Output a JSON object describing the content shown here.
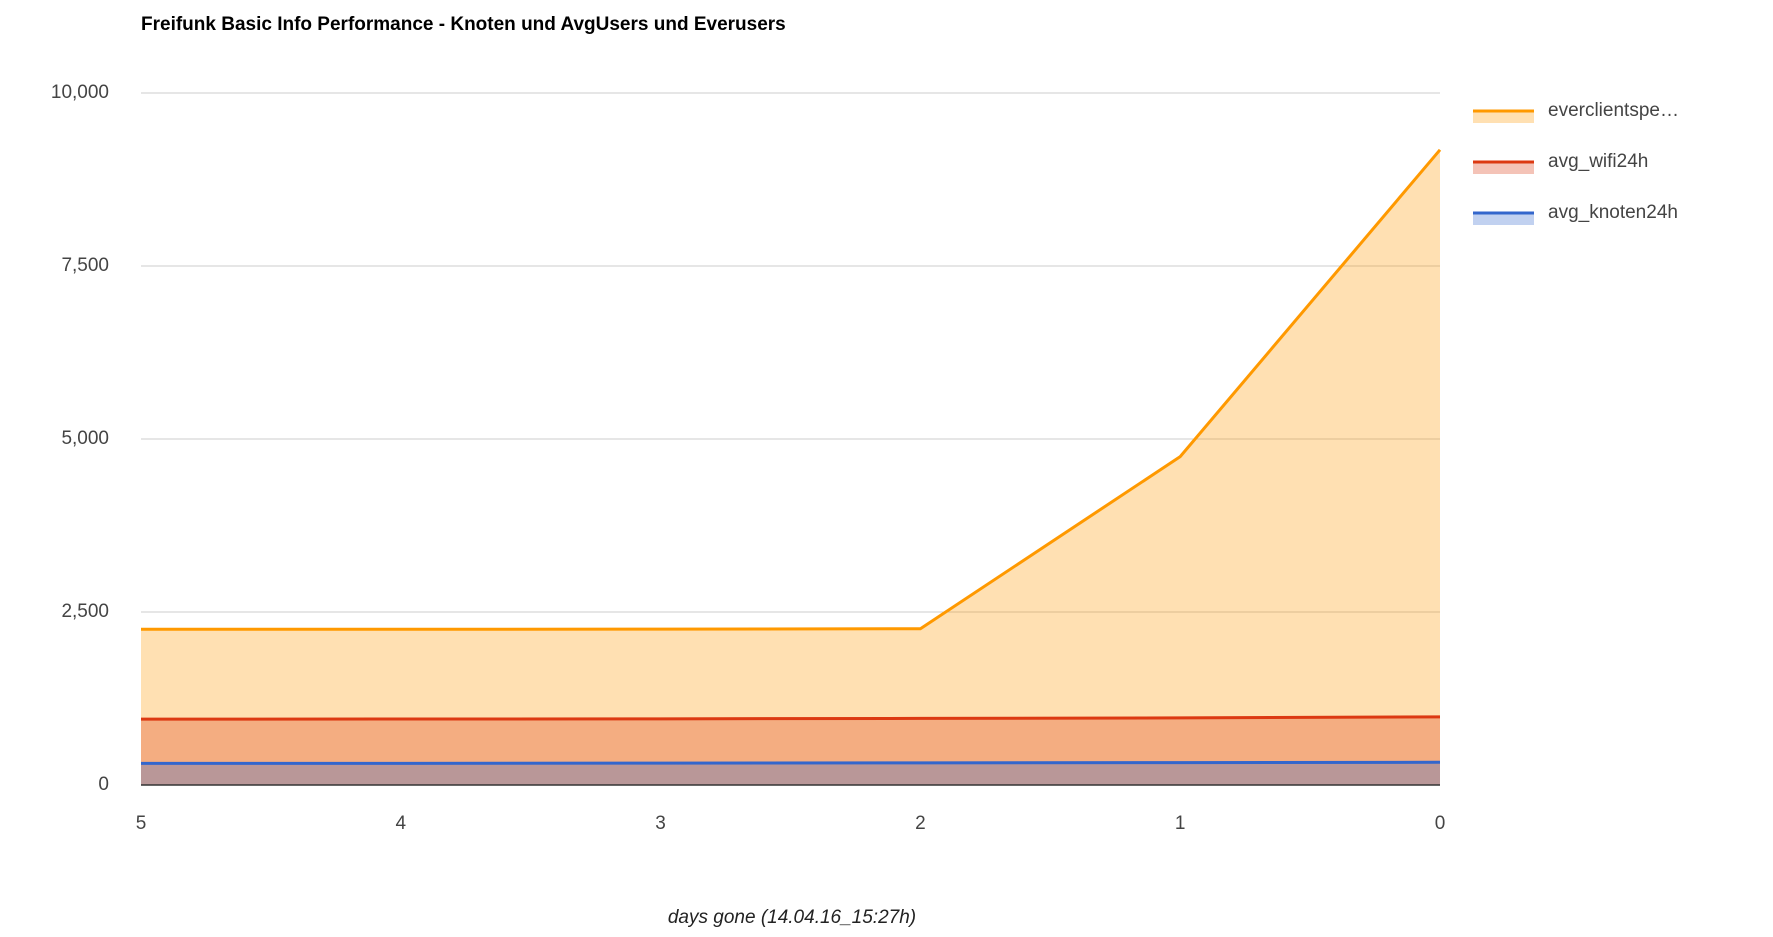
{
  "chart_data": {
    "type": "area",
    "title": "Freifunk Basic Info Performance - Knoten und AvgUsers und Everusers",
    "x_label": "days gone (14.04.16_15:27h)",
    "categories": [
      "5",
      "4",
      "3",
      "2",
      "1",
      "0"
    ],
    "series": [
      {
        "name": "everclientspe…",
        "color": "#ff9900",
        "values": [
          2250,
          2250,
          2252,
          2258,
          4745,
          9179
        ]
      },
      {
        "name": "avg_wifi24h",
        "color": "#dc3912",
        "values": [
          952,
          953,
          956,
          962,
          970,
          985
        ]
      },
      {
        "name": "avg_knoten24h",
        "color": "#3366cc",
        "values": [
          312,
          313,
          316,
          320,
          324,
          328
        ]
      }
    ],
    "ylim": [
      0,
      10000
    ],
    "yticks": [
      0,
      {
        "value": 2500,
        "label": "2,500"
      },
      {
        "value": 5000,
        "label": "5,000"
      },
      {
        "value": 7500,
        "label": "7,500"
      },
      {
        "value": 10000,
        "label": "10,000"
      }
    ],
    "grid": true,
    "legend": "right"
  }
}
